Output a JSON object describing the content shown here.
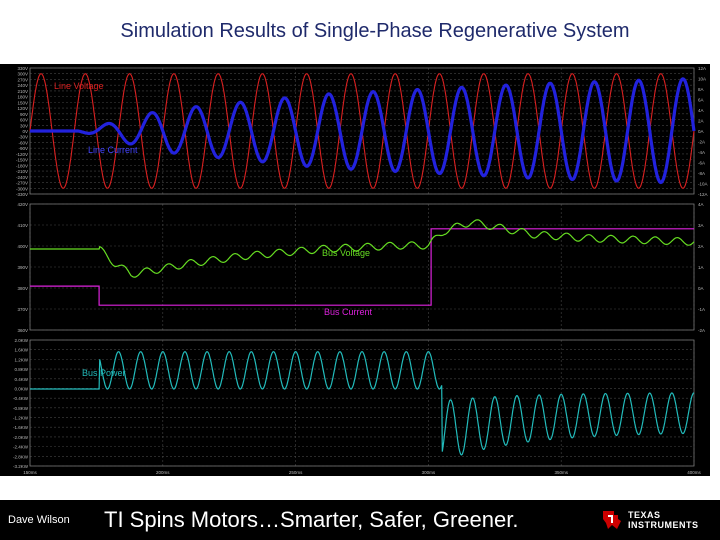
{
  "title": "Simulation Results of Single-Phase Regenerative System",
  "footer": {
    "author": "Dave Wilson",
    "tagline": "TI Spins Motors…Smarter, Safer, Greener.",
    "logo_line1": "TEXAS",
    "logo_line2": "INSTRUMENTS"
  },
  "colors": {
    "background": "#000000",
    "grid": "#444444",
    "axis_text": "#bbbbbb",
    "line_voltage": "#d92020",
    "line_current": "#2222dd",
    "bus_voltage": "#66dd22",
    "bus_current": "#dd22dd",
    "bus_power": "#22bbbb",
    "label_red": "#d92020",
    "label_blue": "#4444ff",
    "label_green": "#66dd22",
    "label_magenta": "#dd22dd",
    "label_cyan": "#22bbbb"
  },
  "chart_data": [
    {
      "type": "line",
      "title": "",
      "x_range_ms": [
        150,
        400
      ],
      "grid": true,
      "yticks_left": [
        "330V",
        "300V",
        "270V",
        "240V",
        "210V",
        "180V",
        "150V",
        "120V",
        "90V",
        "60V",
        "30V",
        "0V",
        "-30V",
        "-60V",
        "-90V",
        "-120V",
        "-150V",
        "-180V",
        "-210V",
        "-240V",
        "-270V",
        "-300V",
        "-330V"
      ],
      "yticks_right": [
        "12A",
        "10A",
        "8A",
        "6A",
        "4A",
        "2A",
        "0A",
        "-2A",
        "-4A",
        "-6A",
        "-8A",
        "-10A",
        "-12A"
      ],
      "ylim_left": [
        -330,
        330
      ],
      "ylim_right": [
        -12,
        12
      ],
      "annotations": [
        {
          "text": "Line Voltage"
        },
        {
          "text": "Line Current"
        }
      ],
      "series": [
        {
          "name": "Line Voltage",
          "axis": "left",
          "frequency_hz": 60,
          "amplitude": 300,
          "description": "sinusoid, constant amplitude"
        },
        {
          "name": "Line Current",
          "axis": "right",
          "frequency_hz": 60,
          "envelope_ms": [
            150,
            168,
            176,
            200,
            240,
            260,
            300,
            340,
            400
          ],
          "envelope_amp_a": [
            0,
            0,
            1,
            4,
            6,
            7,
            8,
            9,
            10
          ],
          "description": "near zero until ~168 ms, then grows"
        }
      ]
    },
    {
      "type": "line",
      "title": "",
      "x_range_ms": [
        150,
        400
      ],
      "grid": true,
      "yticks_left": [
        "420V",
        "410V",
        "400V",
        "390V",
        "380V",
        "370V",
        "360V"
      ],
      "yticks_right": [
        "4A",
        "3A",
        "2A",
        "1A",
        "0A",
        "-1A",
        "-2A"
      ],
      "ylim_left": [
        355,
        425
      ],
      "ylim_right": [
        -2.3,
        4.3
      ],
      "annotations": [
        {
          "text": "Bus Voltage"
        },
        {
          "text": "Bus Current"
        }
      ],
      "series": [
        {
          "name": "Bus Voltage",
          "axis": "left",
          "points_ms": [
            150,
            176,
            182,
            188,
            196,
            210,
            230,
            260,
            290,
            300,
            306,
            316,
            326,
            340,
            360,
            400
          ],
          "points_v": [
            400,
            400,
            392,
            386,
            388,
            392,
            396,
            400,
            402,
            402,
            410,
            415,
            412,
            408,
            406,
            404
          ],
          "ripple_amplitude_v": 2
        },
        {
          "name": "Bus Current",
          "axis": "right",
          "steps_ms": [
            150,
            176,
            301,
            400
          ],
          "steps_a": [
            0,
            -1,
            3
          ],
          "description": "step from 0 A to -1 A at ~176 ms, to +3 A at ~301 ms"
        }
      ]
    },
    {
      "type": "line",
      "title": "",
      "x_range_ms": [
        150,
        400
      ],
      "grid": true,
      "yticks_left": [
        "2.0KW",
        "1.6KW",
        "1.2KW",
        "0.8KW",
        "0.4KW",
        "0.0KW",
        "-0.4KW",
        "-0.8KW",
        "-1.2KW",
        "-1.6KW",
        "-2.0KW",
        "-2.4KW",
        "-2.8KW",
        "-3.2KW"
      ],
      "ylim_left": [
        -3.3,
        2.1
      ],
      "annotations": [
        {
          "text": "Bus Power"
        }
      ],
      "series": [
        {
          "name": "Bus Power",
          "axis": "left",
          "frequency_hz": 120,
          "description": "zero until ~176 ms, oscillates 0.0–1.6 KW until ~305 ms, then negative, dipping to about -3.0 KW and damping to about -1.0 KW"
        }
      ]
    }
  ],
  "x_tick_labels": [
    "150ms",
    "200ms",
    "250ms",
    "300ms",
    "350ms",
    "400ms"
  ]
}
